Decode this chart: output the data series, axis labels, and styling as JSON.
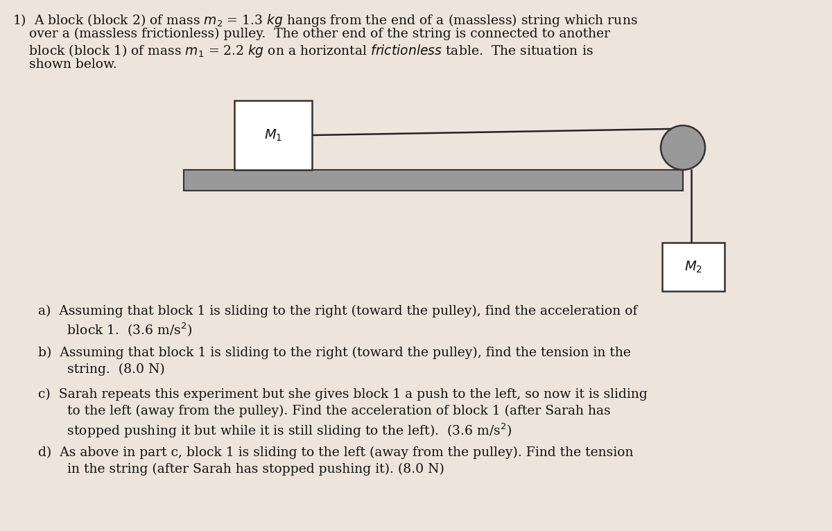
{
  "background_color": "#ede5db",
  "table_color": "#999999",
  "table_edge_color": "#333333",
  "block1_color": "#ffffff",
  "block2_color": "#ffffff",
  "pulley_color": "#999999",
  "string_color": "#222222",
  "text_color": "#111111",
  "M1_label": "$M_1$",
  "M2_label": "$M_2$",
  "problem_text_line1": "1)  A block (block 2) of mass $m_2$ = 1.3 $kg$ hangs from the end of a (massless) string which runs",
  "problem_text_line2": "    over a (massless frictionless) pulley.  The other end of the string is connected to another",
  "problem_text_line3": "    block (block 1) of mass $m_1$ = 2.2 $kg$ on a horizontal $\\it{frictionless}$ table.  The situation is",
  "problem_text_line4": "    shown below.",
  "qa_a": "a)  Assuming that block 1 is sliding to the right (toward the pulley), find the acceleration of\n       block 1.  (3.6 m/s$^2$)",
  "qa_b": "b)  Assuming that block 1 is sliding to the right (toward the pulley), find the tension in the\n       string.  (8.0 N)",
  "qa_c": "c)  Sarah repeats this experiment but she gives block 1 a push to the left, so now it is sliding\n       to the left (away from the pulley). Find the acceleration of block 1 (after Sarah has\n       stopped pushing it but while it is still sliding to the left).  (3.6 m/s$^2$)",
  "qa_d": "d)  As above in part c, block 1 is sliding to the left (away from the pulley). Find the tension\n       in the string (after Sarah has stopped pushing it). (8.0 N)",
  "fontsize_text": 13.5,
  "fontsize_label": 14
}
